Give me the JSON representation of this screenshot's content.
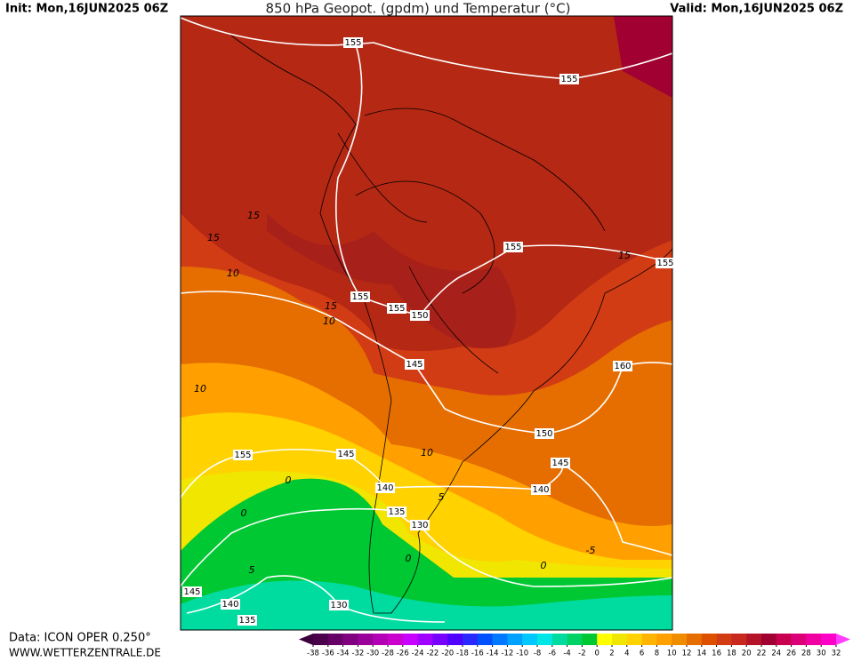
{
  "header": {
    "init": "Init: Mon,16JUN2025 06Z",
    "title": "850 hPa Geopot. (gpdm) und Temperatur (°C)",
    "valid": "Valid: Mon,16JUN2025 06Z"
  },
  "footer": {
    "data": "Data: ICON OPER 0.250°",
    "website": "WWW.WETTERZENTRALE.DE"
  },
  "colorbar": {
    "ticks": [
      -38,
      -36,
      -34,
      -32,
      -30,
      -28,
      -26,
      -24,
      -22,
      -20,
      -18,
      -16,
      -14,
      -12,
      -10,
      -8,
      -6,
      -4,
      -2,
      0,
      2,
      4,
      6,
      8,
      10,
      12,
      14,
      16,
      18,
      20,
      22,
      24,
      26,
      28,
      30,
      32
    ],
    "colors": [
      "#4a004a",
      "#660066",
      "#800080",
      "#9a009a",
      "#b400b4",
      "#cc00cc",
      "#c800ff",
      "#a000ff",
      "#7800ff",
      "#5000ff",
      "#2828ff",
      "#0050ff",
      "#0078ff",
      "#00a0ff",
      "#00c8ff",
      "#00e6e6",
      "#00dca0",
      "#00d264",
      "#00c832",
      "#ffff00",
      "#f0e600",
      "#ffd200",
      "#ffb400",
      "#ffa000",
      "#f08c00",
      "#e66e00",
      "#dc5000",
      "#d23c14",
      "#c8281e",
      "#b41428",
      "#a00032",
      "#c80050",
      "#dc0078",
      "#f000a0",
      "#ff00c8"
    ],
    "low_color": "#3c003c",
    "high_color": "#ff3cff"
  },
  "map": {
    "geopotential_labels": [
      155,
      155,
      155,
      155,
      155,
      155,
      150,
      145,
      160,
      150,
      145,
      140,
      155,
      145,
      140,
      135,
      130,
      145,
      140,
      135,
      130
    ],
    "temperature_labels": [
      15,
      15,
      10,
      10,
      15,
      10,
      5,
      0,
      0,
      5,
      -5,
      0,
      0,
      10,
      15
    ]
  }
}
